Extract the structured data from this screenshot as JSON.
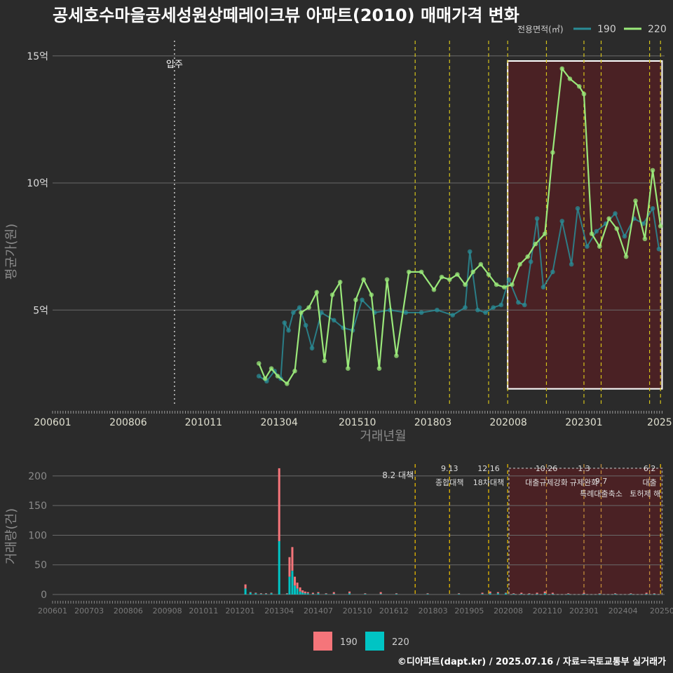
{
  "title": "공세호수마을공세성원상떼레이크뷰 아파트(2010) 매매가격 변화",
  "legend": {
    "title": "전용면적(㎡)",
    "series": [
      {
        "name": "190",
        "color": "#2a8c96"
      },
      {
        "name": "220",
        "color": "#9ae87a"
      }
    ]
  },
  "bottom_legend": {
    "items": [
      {
        "name": "190",
        "color": "#f5757a"
      },
      {
        "name": "220",
        "color": "#00c4c4"
      }
    ]
  },
  "credit": "©디아파트(dapt.kr) / 2025.07.16 / 자료=국토교통부 실거래가",
  "chart_data": [
    {
      "type": "line",
      "title": "공세호수마을공세성원상떼레이크뷰 아파트(2010) 매매가격 변화",
      "xlabel": "거래년월",
      "ylabel": "평균가(원)",
      "xlim": [
        2006.0,
        2025.58
      ],
      "ylim": [
        1.2,
        15.6
      ],
      "y_ticks": [
        {
          "v": 5,
          "label": "5억"
        },
        {
          "v": 10,
          "label": "10억"
        },
        {
          "v": 15,
          "label": "15억"
        }
      ],
      "x_ticks": [
        {
          "v": 2006.0,
          "label": "200601"
        },
        {
          "v": 2008.42,
          "label": "200806"
        },
        {
          "v": 2010.83,
          "label": "201011"
        },
        {
          "v": 2013.25,
          "label": "201304"
        },
        {
          "v": 2015.75,
          "label": "201510"
        },
        {
          "v": 2018.17,
          "label": "201803"
        },
        {
          "v": 2020.58,
          "label": "202008"
        },
        {
          "v": 2023.0,
          "label": "202301"
        },
        {
          "v": 2025.42,
          "label": "2025"
        }
      ],
      "annotation": {
        "x": 2009.9,
        "label": "입주"
      },
      "highlight_box": {
        "x0": 2020.56,
        "x1": 2025.5,
        "y0": 1.9,
        "y1": 14.8
      },
      "policy_lines": [
        2017.6,
        2018.7,
        2019.95,
        2020.56,
        2021.8,
        2023.0,
        2023.55,
        2025.1,
        2025.45
      ],
      "series": [
        {
          "name": "190",
          "x": [
            2012.6,
            2012.85,
            2013.1,
            2013.3,
            2013.42,
            2013.55,
            2013.7,
            2013.9,
            2014.1,
            2014.3,
            2014.6,
            2015.0,
            2015.3,
            2015.6,
            2015.9,
            2016.3,
            2016.8,
            2017.3,
            2017.8,
            2018.3,
            2018.8,
            2019.2,
            2019.35,
            2019.6,
            2019.85,
            2020.1,
            2020.35,
            2020.6,
            2020.9,
            2021.1,
            2021.3,
            2021.5,
            2021.7,
            2022.0,
            2022.3,
            2022.6,
            2022.8,
            2023.1,
            2023.4,
            2023.7,
            2024.0,
            2024.3,
            2024.6,
            2024.9,
            2025.2,
            2025.4
          ],
          "values": [
            2.4,
            2.2,
            2.6,
            2.3,
            4.5,
            4.2,
            4.9,
            5.1,
            4.4,
            3.5,
            4.9,
            4.6,
            4.3,
            4.2,
            5.4,
            4.9,
            5.0,
            4.9,
            4.9,
            5.0,
            4.8,
            5.1,
            7.3,
            5.0,
            4.9,
            5.1,
            5.2,
            6.2,
            5.3,
            5.2,
            6.9,
            8.6,
            5.9,
            6.5,
            8.5,
            6.8,
            9.0,
            7.5,
            8.1,
            8.4,
            8.8,
            7.9,
            8.6,
            8.4,
            9.0,
            7.4
          ]
        },
        {
          "name": "220",
          "x": [
            2012.6,
            2012.8,
            2013.0,
            2013.2,
            2013.5,
            2013.75,
            2013.95,
            2014.2,
            2014.45,
            2014.7,
            2014.95,
            2015.2,
            2015.45,
            2015.7,
            2015.95,
            2016.2,
            2016.45,
            2016.7,
            2017.0,
            2017.4,
            2017.8,
            2018.2,
            2018.45,
            2018.7,
            2018.95,
            2019.2,
            2019.45,
            2019.7,
            2019.95,
            2020.2,
            2020.45,
            2020.7,
            2020.95,
            2021.2,
            2021.45,
            2021.75,
            2022.0,
            2022.3,
            2022.55,
            2022.85,
            2023.0,
            2023.25,
            2023.5,
            2023.8,
            2024.05,
            2024.35,
            2024.65,
            2024.95,
            2025.2,
            2025.45
          ],
          "values": [
            2.9,
            2.3,
            2.7,
            2.4,
            2.1,
            2.6,
            4.9,
            5.1,
            5.7,
            3.0,
            5.6,
            6.1,
            2.7,
            5.4,
            6.2,
            5.6,
            2.7,
            6.2,
            3.2,
            6.5,
            6.5,
            5.8,
            6.3,
            6.2,
            6.4,
            6.0,
            6.5,
            6.8,
            6.4,
            6.0,
            5.9,
            6.0,
            6.8,
            7.1,
            7.6,
            8.0,
            11.2,
            14.5,
            14.1,
            13.8,
            13.5,
            8.0,
            7.5,
            8.6,
            8.2,
            7.1,
            9.3,
            7.8,
            10.5,
            8.3
          ]
        }
      ]
    },
    {
      "type": "bar",
      "xlabel": "",
      "ylabel": "거래량(건)",
      "xlim": [
        2006.0,
        2025.58
      ],
      "ylim": [
        -5,
        220
      ],
      "y_ticks": [
        0,
        50,
        100,
        150,
        200
      ],
      "x_ticks": [
        {
          "v": 2006.0,
          "label": "200601"
        },
        {
          "v": 2007.17,
          "label": "200703"
        },
        {
          "v": 2008.42,
          "label": "200806"
        },
        {
          "v": 2009.67,
          "label": "200908"
        },
        {
          "v": 2010.83,
          "label": "201011"
        },
        {
          "v": 2012.0,
          "label": "201201"
        },
        {
          "v": 2013.25,
          "label": "201304"
        },
        {
          "v": 2014.5,
          "label": "201407"
        },
        {
          "v": 2015.75,
          "label": "201510"
        },
        {
          "v": 2016.92,
          "label": "201612"
        },
        {
          "v": 2018.17,
          "label": "201803"
        },
        {
          "v": 2019.33,
          "label": "201905"
        },
        {
          "v": 2020.58,
          "label": "202008"
        },
        {
          "v": 2021.83,
          "label": "202110"
        },
        {
          "v": 2023.0,
          "label": "202301"
        },
        {
          "v": 2024.25,
          "label": "202404"
        },
        {
          "v": 2025.5,
          "label": "20250"
        }
      ],
      "highlight_box": {
        "x0": 2020.6,
        "x1": 2025.5,
        "y0": 0,
        "y1": 213
      },
      "events": [
        {
          "x": 2017.6,
          "date": "8.2",
          "label": "대책",
          "color": "#e6b800"
        },
        {
          "x": 2018.7,
          "date": "9.13",
          "label": "종합대책",
          "color": "#e6b800"
        },
        {
          "x": 2019.95,
          "date": "12.16",
          "label": "18차대책",
          "color": "#e6b800"
        },
        {
          "x": 2020.56,
          "date": "",
          "label": "",
          "color": "#e6b800"
        },
        {
          "x": 2021.8,
          "date": "10.26",
          "label": "대출규제강화",
          "color": "#c08a3a"
        },
        {
          "x": 2023.0,
          "date": "1.3",
          "label": "규제완화",
          "color": "#c08a3a"
        },
        {
          "x": 2023.55,
          "date": "9.7",
          "label": "특례대출축소",
          "color": "#c08a3a"
        },
        {
          "x": 2025.1,
          "date": "6.2",
          "label": "대출",
          "color": "#c08a3a"
        },
        {
          "x": 2025.45,
          "date": "",
          "label": "토허제 해",
          "color": "#e6b800"
        }
      ],
      "categories_x": [
        2012.17,
        2012.33,
        2012.5,
        2012.67,
        2012.83,
        2013.0,
        2013.25,
        2013.5,
        2013.58,
        2013.67,
        2013.75,
        2013.83,
        2013.92,
        2014.0,
        2014.08,
        2014.17,
        2014.33,
        2014.5,
        2014.75,
        2015.0,
        2015.5,
        2016.0,
        2016.5,
        2017.0,
        2018.0,
        2019.0,
        2019.75,
        2020.0,
        2020.25,
        2020.5,
        2020.75,
        2021.0,
        2021.25,
        2021.5,
        2021.75,
        2022.0,
        2022.5,
        2023.0,
        2023.5,
        2024.0,
        2024.5,
        2025.0,
        2025.25
      ],
      "series": [
        {
          "name": "190",
          "values": [
            17,
            4,
            3,
            2,
            2,
            3,
            213,
            2,
            63,
            80,
            30,
            20,
            12,
            7,
            5,
            4,
            3,
            4,
            2,
            4,
            5,
            2,
            4,
            2,
            2,
            2,
            3,
            5,
            4,
            3,
            2,
            3,
            2,
            3,
            5,
            3,
            2,
            3,
            2,
            2,
            2,
            3,
            2
          ]
        },
        {
          "name": "220",
          "values": [
            10,
            3,
            2,
            1,
            1,
            2,
            90,
            1,
            30,
            40,
            15,
            10,
            5,
            3,
            2,
            2,
            1,
            2,
            1,
            1,
            2,
            1,
            1,
            1,
            1,
            1,
            1,
            2,
            2,
            2,
            1,
            1,
            1,
            1,
            2,
            1,
            1,
            1,
            1,
            1,
            1,
            1,
            1
          ]
        }
      ]
    }
  ]
}
